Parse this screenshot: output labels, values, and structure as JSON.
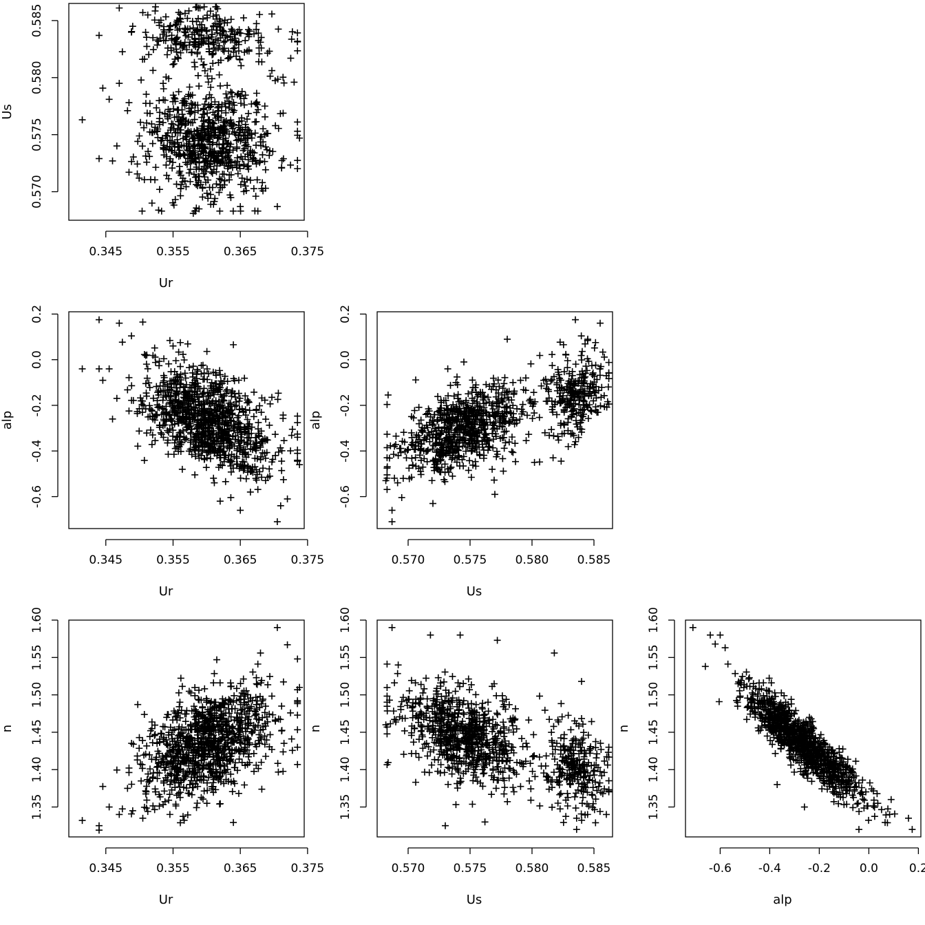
{
  "chart_data": [
    {
      "type": "scatter",
      "xlabel": "Ur",
      "ylabel": "Us",
      "xlim": [
        0.3395,
        0.3745
      ],
      "ylim": [
        0.5675,
        0.5865
      ],
      "xticks": [
        "0.345",
        "0.355",
        "0.365",
        "0.375"
      ],
      "yticks": [
        "0.570",
        "0.575",
        "0.580",
        "0.585"
      ],
      "marker": "+",
      "cluster_summary": "Two clusters: main Ur 0.351-0.371, Us 0.569-0.580; upper Ur 0.350-0.370, Us 0.581-0.586.",
      "sample_points": [
        [
          0.3415,
          0.5763
        ],
        [
          0.344,
          0.5837
        ],
        [
          0.344,
          0.5729
        ],
        [
          0.3455,
          0.5781
        ],
        [
          0.346,
          0.5727
        ],
        [
          0.347,
          0.5861
        ],
        [
          0.347,
          0.5795
        ],
        [
          0.349,
          0.5845
        ],
        [
          0.3505,
          0.5857
        ],
        [
          0.352,
          0.5835
        ],
        [
          0.353,
          0.5702
        ],
        [
          0.356,
          0.5852
        ],
        [
          0.358,
          0.5681
        ],
        [
          0.359,
          0.5861
        ],
        [
          0.3605,
          0.5865
        ],
        [
          0.365,
          0.5687
        ],
        [
          0.368,
          0.5831
        ],
        [
          0.3705,
          0.5687
        ],
        [
          0.3725,
          0.5817
        ],
        [
          0.373,
          0.5796
        ],
        [
          0.3735,
          0.5753
        ],
        [
          0.3738,
          0.5747
        ]
      ]
    },
    {
      "type": "scatter",
      "xlabel": "Ur",
      "ylabel": "alp",
      "xlim": [
        0.3395,
        0.3745
      ],
      "ylim": [
        -0.74,
        0.21
      ],
      "xticks": [
        "0.345",
        "0.355",
        "0.365",
        "0.375"
      ],
      "yticks": [
        "-0.6",
        "-0.4",
        "-0.2",
        "0.0",
        "0.2"
      ],
      "marker": "+",
      "trend": "negative",
      "sample_points": [
        [
          0.3415,
          -0.04
        ],
        [
          0.344,
          0.175
        ],
        [
          0.344,
          -0.04
        ],
        [
          0.3455,
          -0.04
        ],
        [
          0.346,
          -0.26
        ],
        [
          0.347,
          0.16
        ],
        [
          0.3505,
          0.165
        ],
        [
          0.352,
          -0.26
        ],
        [
          0.355,
          0.06
        ],
        [
          0.358,
          -0.37
        ],
        [
          0.362,
          -0.62
        ],
        [
          0.365,
          -0.66
        ],
        [
          0.3665,
          -0.58
        ],
        [
          0.3705,
          -0.71
        ],
        [
          0.371,
          -0.64
        ],
        [
          0.372,
          -0.61
        ],
        [
          0.3735,
          -0.34
        ],
        [
          0.3738,
          -0.46
        ]
      ]
    },
    {
      "type": "scatter",
      "xlabel": "Us",
      "ylabel": "alp",
      "xlim": [
        0.5675,
        0.5865
      ],
      "ylim": [
        -0.74,
        0.21
      ],
      "xticks": [
        "0.570",
        "0.575",
        "0.580",
        "0.585"
      ],
      "yticks": [
        "-0.6",
        "-0.4",
        "-0.2",
        "0.0",
        "0.2"
      ],
      "marker": "+",
      "trend": "positive",
      "sample_points": [
        [
          0.5682,
          -0.53
        ],
        [
          0.5687,
          -0.66
        ],
        [
          0.5687,
          -0.71
        ],
        [
          0.5692,
          -0.42
        ],
        [
          0.572,
          -0.63
        ],
        [
          0.5732,
          -0.04
        ],
        [
          0.5745,
          -0.01
        ],
        [
          0.577,
          -0.59
        ],
        [
          0.578,
          0.09
        ],
        [
          0.5795,
          -0.08
        ],
        [
          0.5802,
          -0.45
        ],
        [
          0.5817,
          -0.43
        ],
        [
          0.5835,
          0.175
        ],
        [
          0.5845,
          0.09
        ],
        [
          0.5855,
          0.16
        ],
        [
          0.586,
          -0.07
        ]
      ]
    },
    {
      "type": "scatter",
      "xlabel": "Ur",
      "ylabel": "n",
      "xlim": [
        0.3395,
        0.3745
      ],
      "ylim": [
        1.31,
        1.6
      ],
      "xticks": [
        "0.345",
        "0.355",
        "0.365",
        "0.375"
      ],
      "yticks": [
        "1.35",
        "1.40",
        "1.45",
        "1.50",
        "1.55",
        "1.60"
      ],
      "marker": "+",
      "trend": "positive",
      "sample_points": [
        [
          0.3415,
          1.332
        ],
        [
          0.344,
          1.319
        ],
        [
          0.344,
          1.325
        ],
        [
          0.3455,
          1.35
        ],
        [
          0.347,
          1.34
        ],
        [
          0.349,
          1.345
        ],
        [
          0.3505,
          1.335
        ],
        [
          0.352,
          1.39
        ],
        [
          0.355,
          1.41
        ],
        [
          0.358,
          1.43
        ],
        [
          0.3615,
          1.547
        ],
        [
          0.368,
          1.556
        ],
        [
          0.3705,
          1.59
        ],
        [
          0.372,
          1.567
        ],
        [
          0.3735,
          1.548
        ],
        [
          0.3738,
          1.51
        ]
      ]
    },
    {
      "type": "scatter",
      "xlabel": "Us",
      "ylabel": "n",
      "xlim": [
        0.5675,
        0.5865
      ],
      "ylim": [
        1.31,
        1.6
      ],
      "xticks": [
        "0.570",
        "0.575",
        "0.580",
        "0.585"
      ],
      "yticks": [
        "1.35",
        "1.40",
        "1.45",
        "1.50",
        "1.55",
        "1.60"
      ],
      "marker": "+",
      "trend": "weak negative",
      "sample_points": [
        [
          0.5682,
          1.46
        ],
        [
          0.5687,
          1.59
        ],
        [
          0.5692,
          1.54
        ],
        [
          0.5718,
          1.58
        ],
        [
          0.573,
          1.325
        ],
        [
          0.5742,
          1.58
        ],
        [
          0.5762,
          1.33
        ],
        [
          0.5772,
          1.573
        ],
        [
          0.5818,
          1.556
        ],
        [
          0.5836,
          1.32
        ],
        [
          0.5836,
          1.335
        ],
        [
          0.584,
          1.518
        ],
        [
          0.586,
          1.34
        ],
        [
          0.5862,
          1.43
        ]
      ]
    },
    {
      "type": "scatter",
      "xlabel": "alp",
      "ylabel": "n",
      "xlim": [
        -0.74,
        0.21
      ],
      "ylim": [
        1.31,
        1.6
      ],
      "xticks": [
        "-0.6",
        "-0.4",
        "-0.2",
        "0.0",
        "0.2"
      ],
      "yticks": [
        "1.35",
        "1.40",
        "1.45",
        "1.50",
        "1.55",
        "1.60"
      ],
      "marker": "+",
      "trend": "strong negative",
      "sample_points": [
        [
          -0.71,
          1.59
        ],
        [
          -0.66,
          1.538
        ],
        [
          -0.64,
          1.58
        ],
        [
          -0.62,
          1.568
        ],
        [
          -0.6,
          1.58
        ],
        [
          -0.58,
          1.563
        ],
        [
          -0.53,
          1.49
        ],
        [
          -0.42,
          1.46
        ],
        [
          -0.37,
          1.38
        ],
        [
          -0.26,
          1.35
        ],
        [
          -0.04,
          1.32
        ],
        [
          0.09,
          1.36
        ],
        [
          0.16,
          1.335
        ],
        [
          0.175,
          1.32
        ]
      ]
    }
  ]
}
